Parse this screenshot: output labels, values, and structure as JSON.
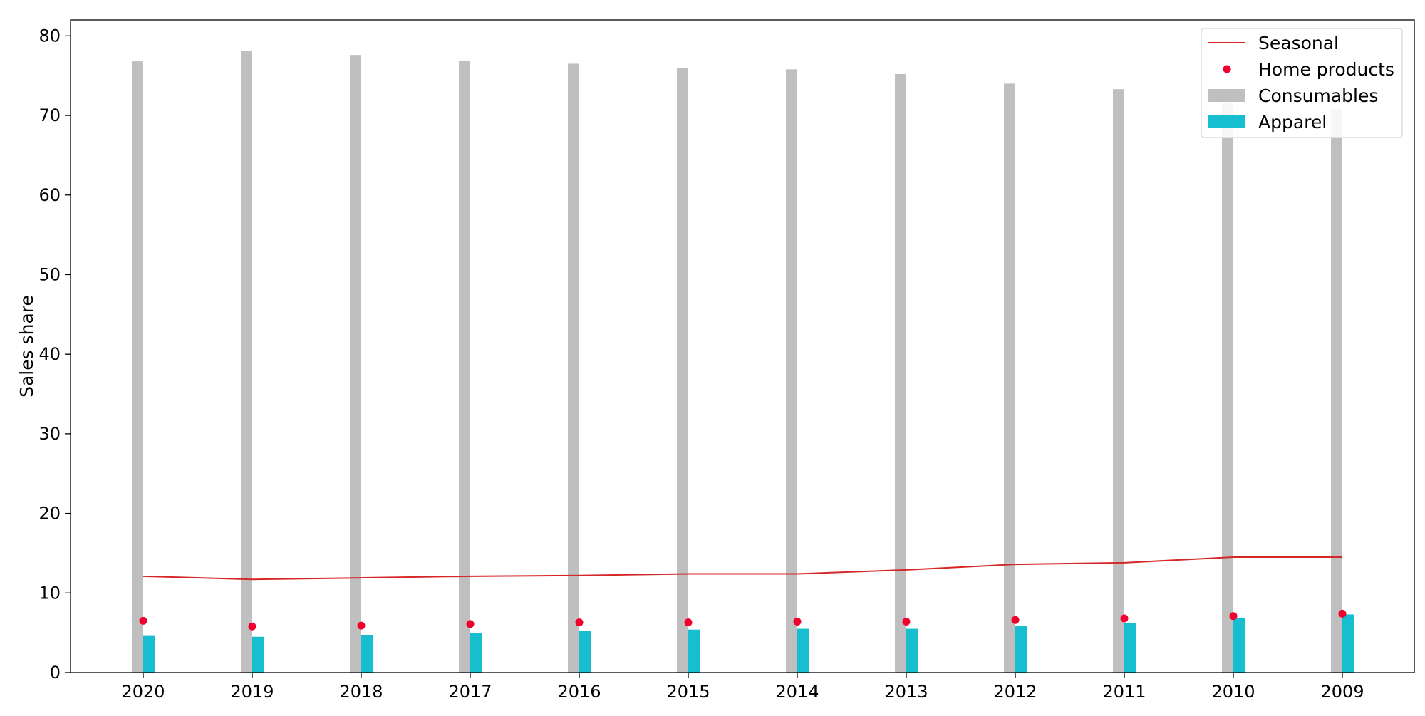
{
  "colors": {
    "consumables": "#bfbfbf",
    "apparel": "#17becf",
    "seasonal": "#d62728",
    "home_products": "#f0002d"
  },
  "chart_data": {
    "type": "bar",
    "title": "",
    "xlabel": "",
    "ylabel": "Sales share",
    "categories": [
      "2020",
      "2019",
      "2018",
      "2017",
      "2016",
      "2015",
      "2014",
      "2013",
      "2012",
      "2011",
      "2010",
      "2009"
    ],
    "ylim": [
      0,
      82
    ],
    "yticks": [
      0,
      10,
      20,
      30,
      40,
      50,
      60,
      70,
      80
    ],
    "grid": false,
    "legend_position": "top-right",
    "series": [
      {
        "name": "Consumables",
        "kind": "bar",
        "color": "#bfbfbf",
        "values": [
          76.8,
          78.1,
          77.6,
          76.9,
          76.5,
          76.0,
          75.8,
          75.2,
          74.0,
          73.3,
          71.5,
          70.8
        ]
      },
      {
        "name": "Apparel",
        "kind": "bar",
        "color": "#17becf",
        "values": [
          4.6,
          4.5,
          4.7,
          5.0,
          5.2,
          5.4,
          5.5,
          5.5,
          5.9,
          6.2,
          6.9,
          7.3
        ]
      },
      {
        "name": "Seasonal",
        "kind": "line",
        "color": "#d62728",
        "values": [
          12.1,
          11.7,
          11.9,
          12.1,
          12.2,
          12.4,
          12.4,
          12.9,
          13.6,
          13.8,
          14.5,
          14.5
        ]
      },
      {
        "name": "Home products",
        "kind": "scatter",
        "color": "#f0002d",
        "values": [
          6.5,
          5.8,
          5.9,
          6.1,
          6.3,
          6.3,
          6.4,
          6.4,
          6.6,
          6.8,
          7.1,
          7.4
        ]
      }
    ]
  }
}
